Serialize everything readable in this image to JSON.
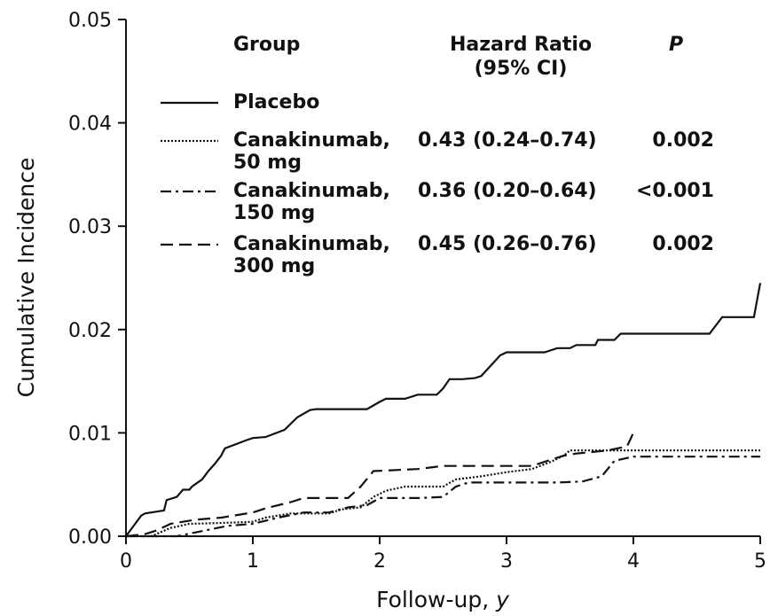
{
  "chart_data": {
    "type": "line",
    "title": "",
    "xlabel": "Follow-up, ",
    "xlabel_italic": "y",
    "ylabel": "Cumulative Incidence",
    "xlim": [
      0,
      5
    ],
    "ylim": [
      0,
      0.05
    ],
    "x_ticks": [
      "0",
      "1",
      "2",
      "3",
      "4",
      "5"
    ],
    "y_ticks": [
      "0.00",
      "0.01",
      "0.02",
      "0.03",
      "0.04",
      "0.05"
    ],
    "grid": false,
    "legend": {
      "placement": "top-left",
      "header_group": "Group",
      "header_hr_line1": "Hazard Ratio",
      "header_hr_line2": "(95% CI)",
      "header_p": "P"
    },
    "series": [
      {
        "name": "Placebo",
        "name_line2": "",
        "hazard_ratio": "",
        "p": "",
        "style": "solid",
        "points": [
          [
            0,
            0
          ],
          [
            0.12,
            0.002
          ],
          [
            0.15,
            0.0022
          ],
          [
            0.3,
            0.0025
          ],
          [
            0.32,
            0.0035
          ],
          [
            0.4,
            0.0038
          ],
          [
            0.45,
            0.0045
          ],
          [
            0.5,
            0.0045
          ],
          [
            0.52,
            0.0048
          ],
          [
            0.6,
            0.0055
          ],
          [
            0.65,
            0.0063
          ],
          [
            0.7,
            0.007
          ],
          [
            0.75,
            0.0078
          ],
          [
            0.78,
            0.0085
          ],
          [
            0.95,
            0.0093
          ],
          [
            1.0,
            0.0095
          ],
          [
            1.1,
            0.0096
          ],
          [
            1.25,
            0.0103
          ],
          [
            1.35,
            0.0115
          ],
          [
            1.45,
            0.0122
          ],
          [
            1.5,
            0.0123
          ],
          [
            1.65,
            0.0123
          ],
          [
            1.9,
            0.0123
          ],
          [
            2.0,
            0.013
          ],
          [
            2.05,
            0.0133
          ],
          [
            2.2,
            0.0133
          ],
          [
            2.3,
            0.0137
          ],
          [
            2.45,
            0.0137
          ],
          [
            2.5,
            0.0143
          ],
          [
            2.55,
            0.0152
          ],
          [
            2.65,
            0.0152
          ],
          [
            2.75,
            0.0153
          ],
          [
            2.8,
            0.0155
          ],
          [
            2.95,
            0.0175
          ],
          [
            3.0,
            0.0178
          ],
          [
            3.3,
            0.0178
          ],
          [
            3.4,
            0.0182
          ],
          [
            3.5,
            0.0182
          ],
          [
            3.55,
            0.0185
          ],
          [
            3.7,
            0.0185
          ],
          [
            3.72,
            0.019
          ],
          [
            3.85,
            0.019
          ],
          [
            3.9,
            0.0196
          ],
          [
            4.0,
            0.0196
          ],
          [
            4.6,
            0.0196
          ],
          [
            4.7,
            0.0212
          ],
          [
            4.95,
            0.0212
          ],
          [
            5.0,
            0.0245
          ]
        ]
      },
      {
        "name": "Canakinumab,",
        "name_line2": "50 mg",
        "hazard_ratio": "0.43 (0.24–0.74)",
        "p": "0.002",
        "style": "dotted",
        "points": [
          [
            0,
            0
          ],
          [
            0.2,
            0
          ],
          [
            0.35,
            0.0008
          ],
          [
            0.5,
            0.0012
          ],
          [
            0.8,
            0.0013
          ],
          [
            1.0,
            0.0014
          ],
          [
            1.1,
            0.0018
          ],
          [
            1.3,
            0.0022
          ],
          [
            1.6,
            0.0022
          ],
          [
            1.7,
            0.0026
          ],
          [
            1.85,
            0.0028
          ],
          [
            1.95,
            0.0038
          ],
          [
            2.05,
            0.0044
          ],
          [
            2.2,
            0.0048
          ],
          [
            2.5,
            0.0048
          ],
          [
            2.6,
            0.0055
          ],
          [
            2.8,
            0.0058
          ],
          [
            3.0,
            0.0062
          ],
          [
            3.2,
            0.0065
          ],
          [
            3.35,
            0.0072
          ],
          [
            3.45,
            0.0078
          ],
          [
            3.5,
            0.0083
          ],
          [
            4.0,
            0.0083
          ],
          [
            5.0,
            0.0083
          ]
        ]
      },
      {
        "name": "Canakinumab,",
        "name_line2": "150 mg",
        "hazard_ratio": "0.36 (0.20–0.64)",
        "p": "<0.001",
        "style": "dashdot",
        "points": [
          [
            0,
            0
          ],
          [
            0.4,
            0
          ],
          [
            0.6,
            0.0005
          ],
          [
            0.8,
            0.001
          ],
          [
            1.0,
            0.0012
          ],
          [
            1.2,
            0.0018
          ],
          [
            1.4,
            0.0023
          ],
          [
            1.6,
            0.0023
          ],
          [
            1.75,
            0.0028
          ],
          [
            1.9,
            0.003
          ],
          [
            2.0,
            0.0037
          ],
          [
            2.3,
            0.0037
          ],
          [
            2.5,
            0.0038
          ],
          [
            2.6,
            0.0048
          ],
          [
            2.7,
            0.0052
          ],
          [
            2.9,
            0.0052
          ],
          [
            3.2,
            0.0052
          ],
          [
            3.4,
            0.0052
          ],
          [
            3.6,
            0.0053
          ],
          [
            3.75,
            0.0058
          ],
          [
            3.85,
            0.0073
          ],
          [
            4.0,
            0.0077
          ],
          [
            5.0,
            0.0077
          ]
        ]
      },
      {
        "name": "Canakinumab,",
        "name_line2": "300 mg",
        "hazard_ratio": "0.45 (0.26–0.76)",
        "p": "0.002",
        "style": "dashed",
        "points": [
          [
            0,
            0
          ],
          [
            0.15,
            0.0002
          ],
          [
            0.25,
            0.0006
          ],
          [
            0.35,
            0.0012
          ],
          [
            0.55,
            0.0016
          ],
          [
            0.75,
            0.0018
          ],
          [
            1.0,
            0.0023
          ],
          [
            1.1,
            0.0027
          ],
          [
            1.3,
            0.0033
          ],
          [
            1.4,
            0.0037
          ],
          [
            1.75,
            0.0037
          ],
          [
            1.85,
            0.0048
          ],
          [
            1.95,
            0.0063
          ],
          [
            2.3,
            0.0065
          ],
          [
            2.5,
            0.0068
          ],
          [
            2.8,
            0.0068
          ],
          [
            3.2,
            0.0068
          ],
          [
            3.3,
            0.0072
          ],
          [
            3.45,
            0.0078
          ],
          [
            3.55,
            0.008
          ],
          [
            3.8,
            0.0083
          ],
          [
            3.95,
            0.0087
          ],
          [
            4.0,
            0.01
          ]
        ]
      }
    ]
  }
}
